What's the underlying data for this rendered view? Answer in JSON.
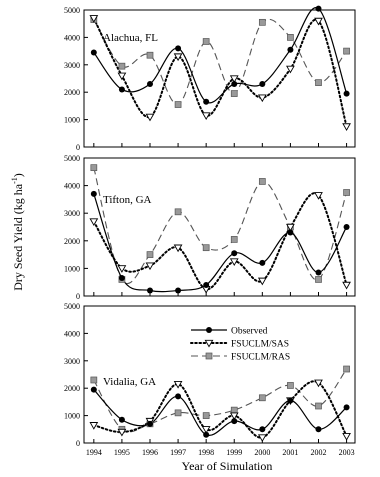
{
  "figure": {
    "xlabel": "Year of Simulation",
    "ylabel": "Dry Seed Yield (kg ha",
    "ylabel_sup": "-1",
    "ylabel_close": ")",
    "legend": {
      "observed": "Observed",
      "sas": "FSUCLM/SAS",
      "ras": "FSUCLM/RAS"
    }
  },
  "chart_data": [
    {
      "type": "line",
      "title": "Alachua, FL",
      "x": [
        1994,
        1995,
        1996,
        1997,
        1998,
        1999,
        2000,
        2001,
        2002,
        2003
      ],
      "ylim": [
        0,
        5000
      ],
      "yticks": [
        0,
        1000,
        2000,
        3000,
        4000,
        5000
      ],
      "series": [
        {
          "name": "Observed",
          "values": [
            3450,
            2100,
            2300,
            3600,
            1650,
            2300,
            2300,
            3550,
            5050,
            1950
          ]
        },
        {
          "name": "FSUCLM/SAS",
          "values": [
            4700,
            2600,
            1100,
            3300,
            1150,
            2500,
            1800,
            2850,
            4600,
            750
          ]
        },
        {
          "name": "FSUCLM/RAS",
          "values": [
            4650,
            2950,
            3350,
            1550,
            3850,
            1950,
            4550,
            4000,
            2350,
            3500
          ]
        }
      ]
    },
    {
      "type": "line",
      "title": "Tifton, GA",
      "x": [
        1994,
        1995,
        1996,
        1997,
        1998,
        1999,
        2000,
        2001,
        2002,
        2003
      ],
      "ylim": [
        0,
        5000
      ],
      "yticks": [
        0,
        1000,
        2000,
        3000,
        4000,
        5000
      ],
      "series": [
        {
          "name": "Observed",
          "values": [
            3700,
            650,
            200,
            200,
            400,
            1550,
            1200,
            2300,
            850,
            2500
          ]
        },
        {
          "name": "FSUCLM/SAS",
          "values": [
            2700,
            1000,
            1100,
            1750,
            250,
            1250,
            550,
            2500,
            3650,
            400
          ]
        },
        {
          "name": "FSUCLM/RAS",
          "values": [
            4650,
            600,
            1500,
            3050,
            1750,
            2050,
            4150,
            2500,
            600,
            3750
          ]
        }
      ]
    },
    {
      "type": "line",
      "title": "Vidalia, GA",
      "x": [
        1994,
        1995,
        1996,
        1997,
        1998,
        1999,
        2000,
        2001,
        2002,
        2003
      ],
      "ylim": [
        0,
        5000
      ],
      "yticks": [
        0,
        1000,
        2000,
        3000,
        4000,
        5000
      ],
      "series": [
        {
          "name": "Observed",
          "values": [
            1950,
            850,
            700,
            1700,
            300,
            800,
            500,
            1550,
            500,
            1300
          ]
        },
        {
          "name": "FSUCLM/SAS",
          "values": [
            650,
            400,
            800,
            2150,
            500,
            1000,
            200,
            1550,
            2200,
            250
          ]
        },
        {
          "name": "FSUCLM/RAS",
          "values": [
            2300,
            500,
            700,
            1100,
            1000,
            1200,
            1650,
            2100,
            1350,
            2700
          ]
        }
      ]
    }
  ]
}
